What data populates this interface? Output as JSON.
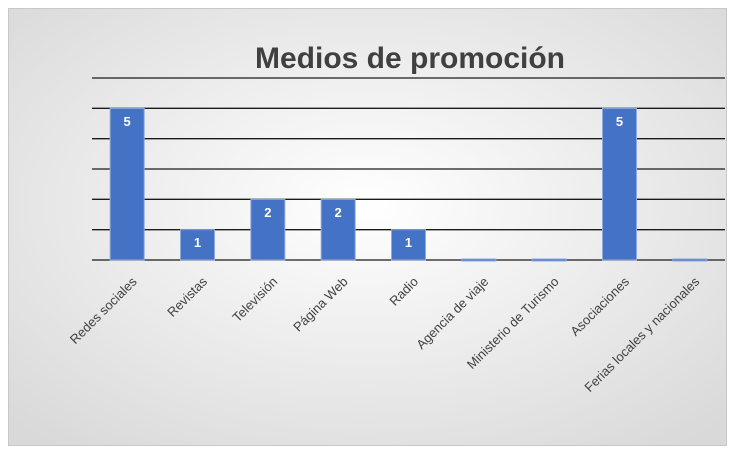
{
  "chart_data": {
    "type": "bar",
    "title": "Medios de promoción",
    "categories": [
      "Redes sociales",
      "Revistas",
      "Televisión",
      "Página Web",
      "Radio",
      "Agencia de viaje",
      "Ministerio de Turismo",
      "Asociaciones",
      "Ferias locales y nacionales"
    ],
    "values": [
      5,
      1,
      2,
      2,
      1,
      0,
      0,
      5,
      0
    ],
    "color": "#4472c4",
    "ylim": [
      0,
      6
    ],
    "yticks": [
      0,
      1,
      2,
      3,
      4,
      5,
      6
    ],
    "grid": true
  }
}
